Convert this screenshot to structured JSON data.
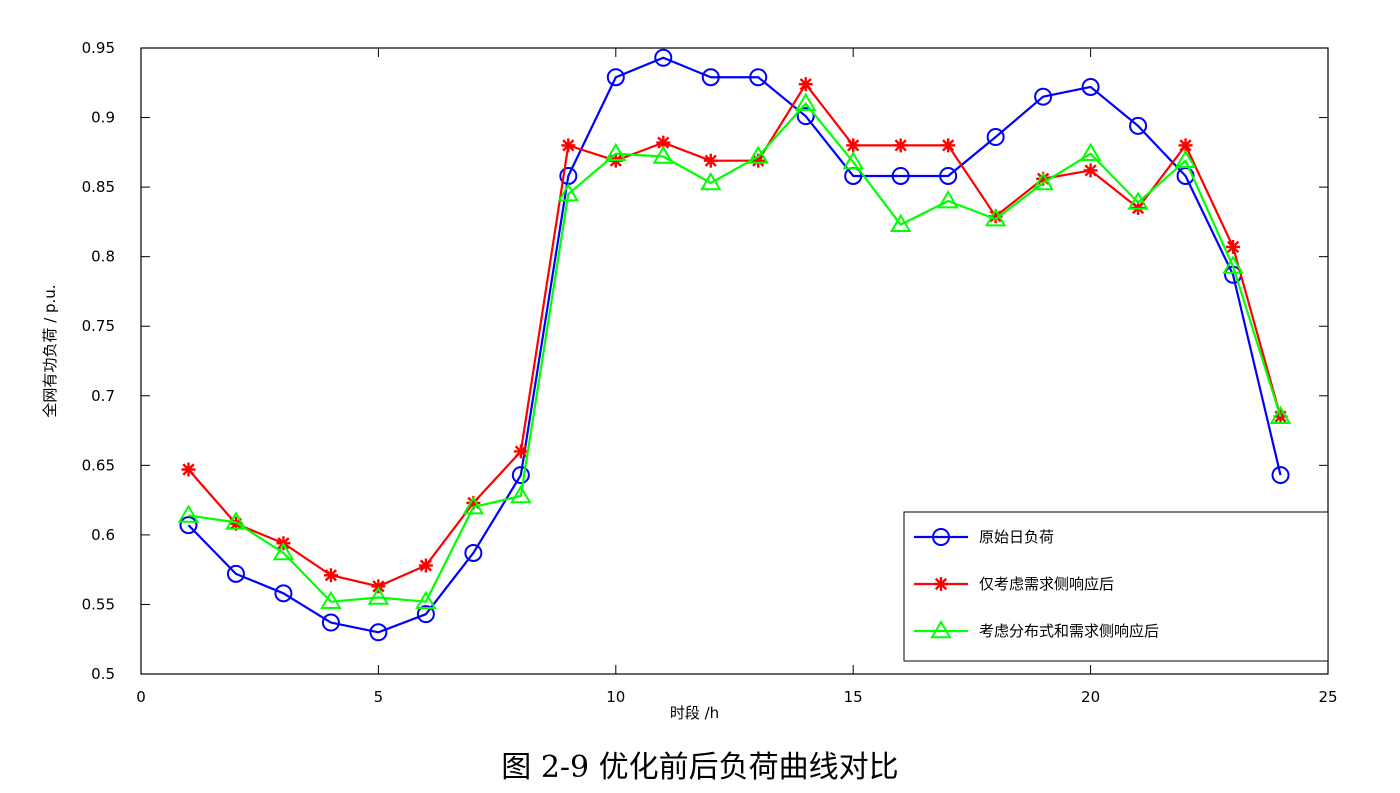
{
  "caption": "图 2-9 优化前后负荷曲线对比",
  "chart_data": {
    "type": "line",
    "xlabel": "时段 /h",
    "ylabel": "全网有功负荷 / p.u.",
    "xlim": [
      0,
      25
    ],
    "ylim": [
      0.5,
      0.95
    ],
    "xticks": [
      0,
      5,
      10,
      15,
      20,
      25
    ],
    "yticks": [
      0.5,
      0.55,
      0.6,
      0.65,
      0.7,
      0.75,
      0.8,
      0.85,
      0.9,
      0.95
    ],
    "ytick_labels": [
      "0.5",
      "0.55",
      "0.6",
      "0.65",
      "0.7",
      "0.75",
      "0.8",
      "0.85",
      "0.9",
      "0.95"
    ],
    "grid": false,
    "legend_position": "bottom-right",
    "x": [
      1,
      2,
      3,
      4,
      5,
      6,
      7,
      8,
      9,
      10,
      11,
      12,
      13,
      14,
      15,
      16,
      17,
      18,
      19,
      20,
      21,
      22,
      23,
      24
    ],
    "series": [
      {
        "name": "原始日负荷",
        "color": "#0000ff",
        "marker": "circle",
        "values": [
          0.607,
          0.572,
          0.558,
          0.537,
          0.53,
          0.543,
          0.587,
          0.643,
          0.858,
          0.929,
          0.943,
          0.929,
          0.929,
          0.901,
          0.858,
          0.858,
          0.858,
          0.886,
          0.915,
          0.922,
          0.894,
          0.858,
          0.787,
          0.643
        ]
      },
      {
        "name": "仅考虑需求侧响应后",
        "color": "#ff0000",
        "marker": "star",
        "values": [
          0.647,
          0.608,
          0.594,
          0.571,
          0.563,
          0.578,
          0.623,
          0.66,
          0.88,
          0.869,
          0.882,
          0.869,
          0.869,
          0.924,
          0.88,
          0.88,
          0.88,
          0.829,
          0.856,
          0.862,
          0.835,
          0.88,
          0.807,
          0.685
        ]
      },
      {
        "name": "考虑分布式和需求侧响应后",
        "color": "#00ff00",
        "marker": "triangle",
        "values": [
          0.614,
          0.609,
          0.587,
          0.552,
          0.555,
          0.552,
          0.62,
          0.628,
          0.845,
          0.874,
          0.872,
          0.853,
          0.872,
          0.91,
          0.868,
          0.823,
          0.84,
          0.827,
          0.853,
          0.874,
          0.839,
          0.869,
          0.793,
          0.685
        ]
      }
    ]
  }
}
